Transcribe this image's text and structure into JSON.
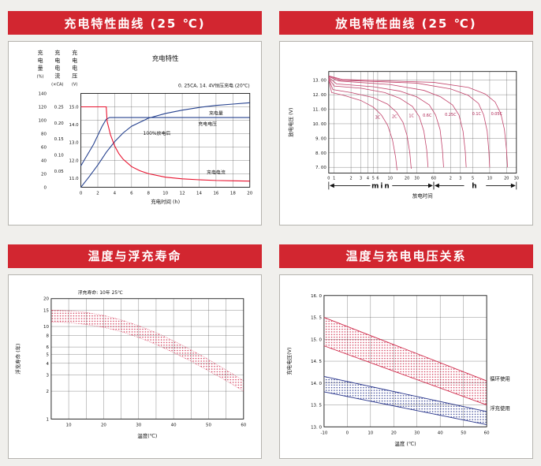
{
  "page": {
    "background": "#f0efec",
    "header_color": "#d22630"
  },
  "panels": [
    {
      "id": "charge",
      "title": "充电特性曲线 (25 ℃)"
    },
    {
      "id": "discharge",
      "title": "放电特性曲线 (25 ℃)"
    },
    {
      "id": "floatlife",
      "title": "温度与浮充寿命"
    },
    {
      "id": "tempvolt",
      "title": "温度与充电电压关系"
    }
  ],
  "chart_data": [
    {
      "id": "charge",
      "type": "line",
      "title": "充电特性",
      "subtitle": "0. 25CA, 14. 4V恒压充电 (20℃)",
      "xlabel": "充电时间 (h)",
      "xlim": [
        0,
        20
      ],
      "xticks": [
        [
          0,
          "0"
        ],
        [
          2,
          "2"
        ],
        [
          4,
          "4"
        ],
        [
          6,
          "6"
        ],
        [
          8,
          "8"
        ],
        [
          10,
          "10"
        ],
        [
          12,
          "12"
        ],
        [
          14,
          "14"
        ],
        [
          16,
          "16"
        ],
        [
          18,
          "18"
        ],
        [
          20,
          "20"
        ]
      ],
      "yaxes": [
        {
          "title": "充电量",
          "unit": "(%)",
          "lim": [
            0,
            140
          ],
          "ticks": [
            [
              0,
              "0"
            ],
            [
              20,
              "20"
            ],
            [
              40,
              "40"
            ],
            [
              60,
              "60"
            ],
            [
              80,
              "80"
            ],
            [
              100,
              "100"
            ],
            [
              120,
              "120"
            ],
            [
              140,
              "140"
            ]
          ]
        },
        {
          "title": "充电电流",
          "unit": "(×CA)",
          "lim": [
            0,
            0.2917
          ],
          "ticks": [
            [
              0.05,
              "0.05"
            ],
            [
              0.1,
              "0.10"
            ],
            [
              0.15,
              "0.15"
            ],
            [
              0.2,
              "0.20"
            ],
            [
              0.25,
              "0.25"
            ]
          ]
        },
        {
          "title": "充电电压",
          "unit": "(V)",
          "lim": [
            10.5,
            15.75
          ],
          "ticks": [
            [
              11,
              "11.0"
            ],
            [
              12,
              "12.0"
            ],
            [
              13,
              "13.0"
            ],
            [
              14,
              "14.0"
            ],
            [
              15,
              "15.0"
            ]
          ]
        }
      ],
      "series": [
        {
          "name": "充电量",
          "axis": 0,
          "color": "#24408e",
          "points": [
            [
              0,
              0
            ],
            [
              1,
              16
            ],
            [
              2,
              33
            ],
            [
              3,
              52
            ],
            [
              4,
              68
            ],
            [
              5,
              81
            ],
            [
              6,
              91
            ],
            [
              8,
              103
            ],
            [
              10,
              110
            ],
            [
              12,
              115
            ],
            [
              14,
              119
            ],
            [
              16,
              122
            ],
            [
              18,
              124
            ],
            [
              20,
              126
            ]
          ]
        },
        {
          "name": "充电电压",
          "axis": 2,
          "color": "#24408e",
          "points": [
            [
              0,
              11.7
            ],
            [
              0.5,
              12.1
            ],
            [
              1,
              12.5
            ],
            [
              1.5,
              12.9
            ],
            [
              2,
              13.4
            ],
            [
              2.5,
              13.9
            ],
            [
              3,
              14.3
            ],
            [
              3.4,
              14.4
            ],
            [
              20,
              14.4
            ]
          ]
        },
        {
          "name": "充电电流",
          "axis": 1,
          "color": "#e8112d",
          "points": [
            [
              0,
              0.25
            ],
            [
              3,
              0.25
            ],
            [
              3.1,
              0.205
            ],
            [
              3.5,
              0.163
            ],
            [
              4,
              0.128
            ],
            [
              4.5,
              0.104
            ],
            [
              5,
              0.087
            ],
            [
              6,
              0.064
            ],
            [
              7,
              0.051
            ],
            [
              8,
              0.042
            ],
            [
              10,
              0.031
            ],
            [
              12,
              0.026
            ],
            [
              14,
              0.023
            ],
            [
              16,
              0.021
            ],
            [
              18,
              0.02
            ],
            [
              20,
              0.019
            ]
          ]
        }
      ],
      "annotations": [
        {
          "text": "充电量",
          "axis": 0,
          "x": 16,
          "y": 108
        },
        {
          "text": "充电电压",
          "axis": 2,
          "x": 15,
          "y": 13.95
        },
        {
          "text": "100%放电后",
          "axis": 2,
          "x": 9,
          "y": 13.42
        },
        {
          "text": "充电电流",
          "axis": 1,
          "x": 16,
          "y": 0.042
        }
      ]
    },
    {
      "id": "discharge",
      "type": "line",
      "ylabel": "放电电压 (V)",
      "xlabel": "放电时间",
      "xscale": "log",
      "xlim": [
        0.8,
        1800
      ],
      "xticks": [
        [
          0.8,
          "0"
        ],
        [
          1,
          "1"
        ],
        [
          2,
          "2"
        ],
        [
          3,
          "3"
        ],
        [
          4,
          "4"
        ],
        [
          5,
          "5"
        ],
        [
          6,
          "6"
        ],
        [
          10,
          "10"
        ],
        [
          20,
          "20"
        ],
        [
          30,
          "30"
        ],
        [
          60,
          "60"
        ],
        [
          120,
          "2"
        ],
        [
          180,
          "3"
        ],
        [
          300,
          "5"
        ],
        [
          600,
          "10"
        ],
        [
          1200,
          "20"
        ],
        [
          1800,
          "30"
        ]
      ],
      "ylim": [
        6.6,
        13.6
      ],
      "yticks": [
        [
          13,
          "13. 00"
        ],
        [
          12,
          "12. 00"
        ],
        [
          11,
          "11. 00"
        ],
        [
          10,
          "10. 00"
        ],
        [
          9,
          "9. 00"
        ],
        [
          8,
          "8. 00"
        ],
        [
          7,
          "7. 00"
        ]
      ],
      "unit_ranges": [
        {
          "label": "min",
          "from": 0.8,
          "to": 60
        },
        {
          "label": "h",
          "from": 60,
          "to": 1800
        }
      ],
      "series": [
        {
          "name": "3C",
          "color": "#c2436b",
          "points": [
            [
              0.8,
              13.05
            ],
            [
              0.9,
              12.15
            ],
            [
              1.5,
              11.95
            ],
            [
              3,
              11.6
            ],
            [
              5,
              11.15
            ],
            [
              7,
              10.6
            ],
            [
              9,
              9.9
            ],
            [
              11,
              8.9
            ],
            [
              12.5,
              7.7
            ],
            [
              13.3,
              6.8
            ]
          ]
        },
        {
          "name": "2C",
          "color": "#c2436b",
          "points": [
            [
              0.8,
              13.1
            ],
            [
              0.95,
              12.35
            ],
            [
              2,
              12.15
            ],
            [
              5,
              11.8
            ],
            [
              9,
              11.35
            ],
            [
              13,
              10.8
            ],
            [
              17,
              10.1
            ],
            [
              20,
              9.2
            ],
            [
              22.5,
              8.0
            ],
            [
              23.8,
              6.9
            ]
          ]
        },
        {
          "name": "1C",
          "color": "#c2436b",
          "points": [
            [
              0.8,
              13.15
            ],
            [
              1,
              12.6
            ],
            [
              3,
              12.45
            ],
            [
              8,
              12.15
            ],
            [
              15,
              11.75
            ],
            [
              25,
              11.2
            ],
            [
              33,
              10.5
            ],
            [
              40,
              9.5
            ],
            [
              45,
              8.2
            ],
            [
              47.5,
              7.0
            ]
          ]
        },
        {
          "name": "0.6C",
          "color": "#c2436b",
          "points": [
            [
              0.8,
              13.2
            ],
            [
              1.1,
              12.75
            ],
            [
              5,
              12.55
            ],
            [
              15,
              12.25
            ],
            [
              30,
              11.85
            ],
            [
              50,
              11.3
            ],
            [
              65,
              10.6
            ],
            [
              78,
              9.6
            ],
            [
              86,
              8.2
            ],
            [
              90,
              7.0
            ]
          ]
        },
        {
          "name": "0.25C",
          "color": "#c2436b",
          "points": [
            [
              0.8,
              13.25
            ],
            [
              1.2,
              12.95
            ],
            [
              10,
              12.7
            ],
            [
              40,
              12.3
            ],
            [
              80,
              11.85
            ],
            [
              130,
              11.3
            ],
            [
              170,
              10.6
            ],
            [
              200,
              9.5
            ],
            [
              220,
              8.1
            ],
            [
              228,
              7.0
            ]
          ]
        },
        {
          "name": "0.1C",
          "color": "#c2436b",
          "points": [
            [
              0.8,
              13.3
            ],
            [
              1.3,
              13.0
            ],
            [
              30,
              12.8
            ],
            [
              120,
              12.4
            ],
            [
              250,
              11.95
            ],
            [
              380,
              11.4
            ],
            [
              470,
              10.6
            ],
            [
              540,
              9.5
            ],
            [
              580,
              8.1
            ],
            [
              600,
              7.0
            ]
          ]
        },
        {
          "name": "0.05C",
          "color": "#c2436b",
          "points": [
            [
              0.8,
              13.3
            ],
            [
              1.4,
              13.05
            ],
            [
              60,
              12.85
            ],
            [
              250,
              12.5
            ],
            [
              500,
              12.05
            ],
            [
              750,
              11.5
            ],
            [
              950,
              10.7
            ],
            [
              1100,
              9.6
            ],
            [
              1200,
              8.2
            ],
            [
              1250,
              7.0
            ]
          ]
        }
      ],
      "curve_labels": [
        [
          "3C",
          6,
          10.35
        ],
        [
          "2C",
          12,
          10.4
        ],
        [
          "1C",
          24,
          10.45
        ],
        [
          "0.6C",
          46,
          10.5
        ],
        [
          "0.25C",
          120,
          10.55
        ],
        [
          "0.1C",
          350,
          10.6
        ],
        [
          "0.05C",
          800,
          10.6
        ]
      ]
    },
    {
      "id": "floatlife",
      "type": "area",
      "note": "浮充寿命: 10年 25℃",
      "ylabel": "浮充寿命 (年)",
      "xlabel": "温度(℃)",
      "xlim": [
        5,
        60
      ],
      "xticks": [
        [
          10,
          "10"
        ],
        [
          20,
          "20"
        ],
        [
          30,
          "30"
        ],
        [
          40,
          "40"
        ],
        [
          50,
          "50"
        ],
        [
          60,
          "60"
        ]
      ],
      "xminor": [
        5,
        15,
        25,
        35,
        45,
        55
      ],
      "yscale": "log",
      "ylim": [
        1,
        20
      ],
      "yticks": [
        [
          20,
          "20"
        ],
        [
          15,
          "15"
        ],
        [
          10,
          "10"
        ],
        [
          8,
          "8"
        ],
        [
          6,
          "6"
        ],
        [
          5,
          "5"
        ],
        [
          4,
          "4"
        ],
        [
          3,
          "3"
        ],
        [
          2,
          "2"
        ],
        [
          1,
          "1"
        ]
      ],
      "band": {
        "color": "#cf2b4b",
        "upper": [
          [
            5,
            15
          ],
          [
            10,
            14.8
          ],
          [
            15,
            14.2
          ],
          [
            20,
            13.2
          ],
          [
            25,
            11.8
          ],
          [
            30,
            10.2
          ],
          [
            35,
            8.6
          ],
          [
            40,
            7.0
          ],
          [
            45,
            5.6
          ],
          [
            50,
            4.4
          ],
          [
            55,
            3.4
          ],
          [
            60,
            2.6
          ]
        ],
        "lower": [
          [
            5,
            11.2
          ],
          [
            10,
            11.0
          ],
          [
            15,
            10.5
          ],
          [
            20,
            9.8
          ],
          [
            25,
            8.8
          ],
          [
            30,
            7.6
          ],
          [
            35,
            6.4
          ],
          [
            40,
            5.2
          ],
          [
            45,
            4.2
          ],
          [
            50,
            3.3
          ],
          [
            55,
            2.6
          ],
          [
            60,
            2.0
          ]
        ]
      }
    },
    {
      "id": "tempvolt",
      "type": "area",
      "ylabel": "充电电压(V)",
      "xlabel": "温度 (℃)",
      "xlim": [
        -10,
        60
      ],
      "xticks": [
        [
          -10,
          "-10"
        ],
        [
          0,
          "0"
        ],
        [
          10,
          "10"
        ],
        [
          20,
          "20"
        ],
        [
          30,
          "30"
        ],
        [
          40,
          "40"
        ],
        [
          50,
          "50"
        ],
        [
          60,
          "60"
        ]
      ],
      "ylim": [
        13,
        16
      ],
      "yticks": [
        [
          16,
          "16. 0"
        ],
        [
          15.5,
          "15. 5"
        ],
        [
          15,
          "15. 0"
        ],
        [
          14.5,
          "14. 5"
        ],
        [
          14,
          "14. 0"
        ],
        [
          13.5,
          "13. 5"
        ],
        [
          13,
          "13. 0"
        ]
      ],
      "bands": [
        {
          "name": "循环使用",
          "color": "#cf2b4b",
          "label_y": 14.1,
          "upper": [
            [
              -10,
              15.5
            ],
            [
              60,
              14.05
            ]
          ],
          "lower": [
            [
              -10,
              14.85
            ],
            [
              60,
              13.5
            ]
          ]
        },
        {
          "name": "浮充使用",
          "color": "#27348b",
          "label_y": 13.42,
          "upper": [
            [
              -10,
              14.15
            ],
            [
              60,
              13.35
            ]
          ],
          "lower": [
            [
              -10,
              13.8
            ],
            [
              60,
              13.05
            ]
          ]
        }
      ]
    }
  ]
}
